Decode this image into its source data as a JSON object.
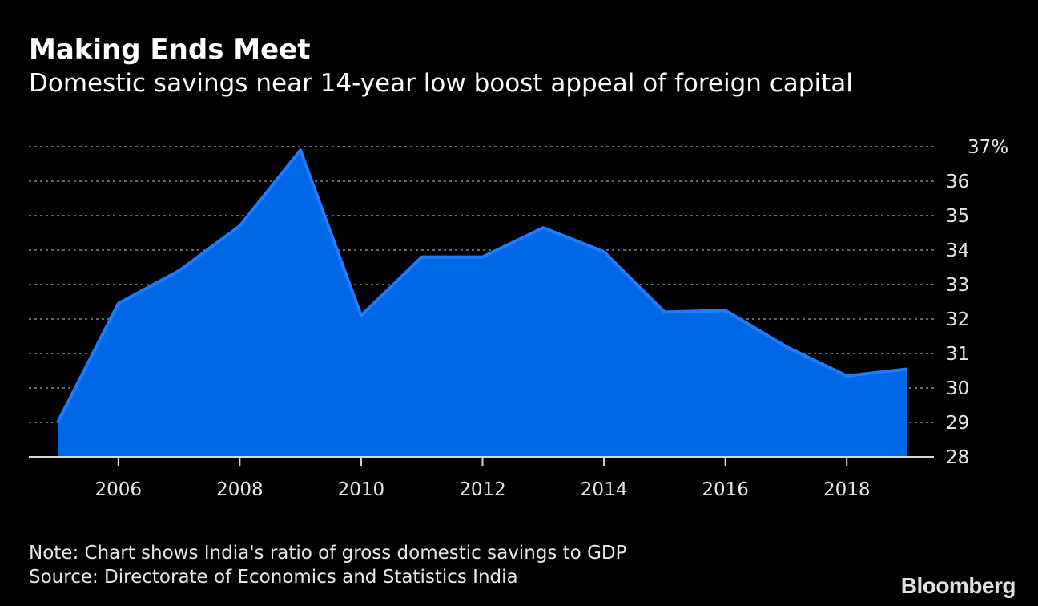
{
  "header": {
    "title": "Making Ends Meet",
    "subtitle": "Domestic savings near 14-year low boost appeal of foreign capital"
  },
  "footer": {
    "note": "Note: Chart shows India's ratio of gross domestic savings to GDP",
    "source": "Source: Directorate of Economics and Statistics India",
    "brand": "Bloomberg"
  },
  "colors": {
    "background": "#000000",
    "area_fill": "#0068E6",
    "area_line": "#1F7BFF",
    "grid": "#8a8a8a",
    "text": "#e6e6e6"
  },
  "chart_data": {
    "type": "area",
    "title": "Making Ends Meet",
    "subtitle": "Domestic savings near 14-year low boost appeal of foreign capital",
    "xlabel": "",
    "ylabel": "",
    "x": [
      2005,
      2006,
      2007,
      2008,
      2009,
      2010,
      2011,
      2012,
      2013,
      2014,
      2015,
      2016,
      2017,
      2018,
      2019
    ],
    "series": [
      {
        "name": "Gross domestic savings (% of GDP)",
        "values": [
          29.0,
          32.45,
          33.4,
          34.7,
          36.9,
          32.1,
          33.8,
          33.8,
          34.65,
          33.95,
          32.2,
          32.25,
          31.2,
          30.35,
          30.55
        ]
      }
    ],
    "xlim": [
      2004.5,
      2019.45
    ],
    "ylim": [
      28,
      37
    ],
    "x_ticks": [
      2006,
      2008,
      2010,
      2012,
      2014,
      2016,
      2018
    ],
    "x_tick_labels": [
      "2006",
      "2008",
      "2010",
      "2012",
      "2014",
      "2016",
      "2018"
    ],
    "y_ticks": [
      28,
      29,
      30,
      31,
      32,
      33,
      34,
      35,
      36,
      37
    ],
    "y_tick_labels": [
      "28",
      "29",
      "30",
      "31",
      "32",
      "33",
      "34",
      "35",
      "36",
      "37%"
    ],
    "y_axis_position": "right",
    "grid": true,
    "grid_style": "dotted horizontal",
    "legend": "none"
  }
}
